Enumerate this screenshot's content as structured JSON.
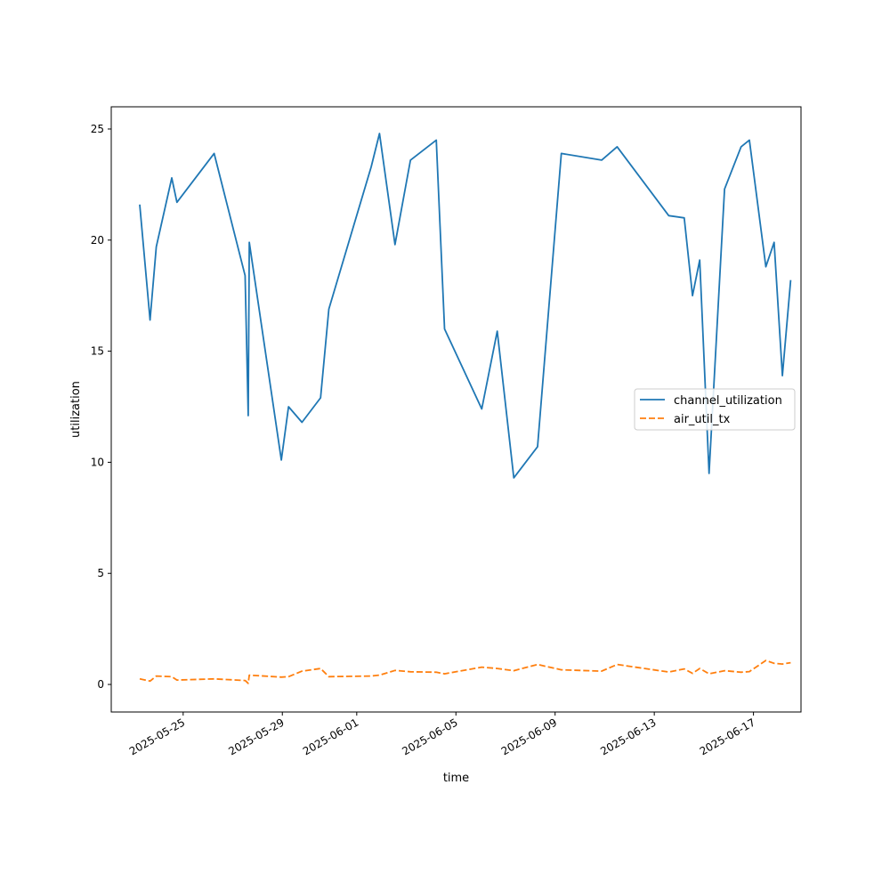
{
  "chart_data": {
    "type": "line",
    "title": "",
    "xlabel": "time",
    "ylabel": "utilization",
    "xlim": [
      "2025-05-22 02:24",
      "2025-06-18 22:00"
    ],
    "ylim": [
      -1.24,
      26.0
    ],
    "x_ticks": [
      "2025-05-25",
      "2025-05-29",
      "2025-06-01",
      "2025-06-05",
      "2025-06-09",
      "2025-06-13",
      "2025-06-17"
    ],
    "y_ticks": [
      0,
      5,
      10,
      15,
      20,
      25
    ],
    "grid": false,
    "legend_position": "right",
    "series": [
      {
        "name": "channel_utilization",
        "color": "#1f77b4",
        "dash": "solid",
        "points": [
          [
            "2025-05-23 06:00",
            21.6
          ],
          [
            "2025-05-23 16:00",
            16.4
          ],
          [
            "2025-05-23 22:00",
            19.7
          ],
          [
            "2025-05-24 13:00",
            22.8
          ],
          [
            "2025-05-24 18:00",
            21.7
          ],
          [
            "2025-05-26 06:00",
            23.9
          ],
          [
            "2025-05-27 12:00",
            18.4
          ],
          [
            "2025-05-27 15:00",
            12.1
          ],
          [
            "2025-05-27 16:00",
            19.9
          ],
          [
            "2025-05-28 23:00",
            10.1
          ],
          [
            "2025-05-29 06:00",
            12.5
          ],
          [
            "2025-05-29 19:00",
            11.8
          ],
          [
            "2025-05-30 13:00",
            12.9
          ],
          [
            "2025-05-30 21:00",
            16.9
          ],
          [
            "2025-06-01 14:00",
            23.3
          ],
          [
            "2025-06-01 22:00",
            24.8
          ],
          [
            "2025-06-02 13:00",
            19.8
          ],
          [
            "2025-06-03 04:00",
            23.6
          ],
          [
            "2025-06-04 05:00",
            24.5
          ],
          [
            "2025-06-04 13:00",
            16.0
          ],
          [
            "2025-06-06 01:00",
            12.4
          ],
          [
            "2025-06-06 16:00",
            15.9
          ],
          [
            "2025-06-07 08:00",
            9.3
          ],
          [
            "2025-06-08 07:00",
            10.7
          ],
          [
            "2025-06-09 06:00",
            23.9
          ],
          [
            "2025-06-10 21:00",
            23.6
          ],
          [
            "2025-06-11 12:00",
            24.2
          ],
          [
            "2025-06-13 14:00",
            21.1
          ],
          [
            "2025-06-14 05:00",
            21.0
          ],
          [
            "2025-06-14 13:00",
            17.5
          ],
          [
            "2025-06-14 20:00",
            19.1
          ],
          [
            "2025-06-15 05:00",
            9.5
          ],
          [
            "2025-06-15 20:00",
            22.3
          ],
          [
            "2025-06-16 12:00",
            24.2
          ],
          [
            "2025-06-16 20:00",
            24.5
          ],
          [
            "2025-06-17 12:00",
            18.8
          ],
          [
            "2025-06-17 20:00",
            19.9
          ],
          [
            "2025-06-18 04:00",
            13.9
          ],
          [
            "2025-06-18 12:00",
            18.2
          ]
        ]
      },
      {
        "name": "air_util_tx",
        "color": "#ff7f0e",
        "dash": "dashed",
        "points": [
          [
            "2025-05-23 06:00",
            0.25
          ],
          [
            "2025-05-23 16:00",
            0.15
          ],
          [
            "2025-05-23 22:00",
            0.38
          ],
          [
            "2025-05-24 13:00",
            0.35
          ],
          [
            "2025-05-24 18:00",
            0.2
          ],
          [
            "2025-05-26 06:00",
            0.25
          ],
          [
            "2025-05-27 12:00",
            0.18
          ],
          [
            "2025-05-27 15:00",
            0.05
          ],
          [
            "2025-05-27 16:00",
            0.42
          ],
          [
            "2025-05-28 23:00",
            0.33
          ],
          [
            "2025-05-29 06:00",
            0.35
          ],
          [
            "2025-05-29 19:00",
            0.6
          ],
          [
            "2025-05-30 13:00",
            0.72
          ],
          [
            "2025-05-30 21:00",
            0.35
          ],
          [
            "2025-06-01 14:00",
            0.38
          ],
          [
            "2025-06-01 22:00",
            0.42
          ],
          [
            "2025-06-02 13:00",
            0.63
          ],
          [
            "2025-06-03 04:00",
            0.57
          ],
          [
            "2025-06-04 05:00",
            0.55
          ],
          [
            "2025-06-04 13:00",
            0.48
          ],
          [
            "2025-06-06 01:00",
            0.78
          ],
          [
            "2025-06-06 16:00",
            0.72
          ],
          [
            "2025-06-07 08:00",
            0.62
          ],
          [
            "2025-06-08 07:00",
            0.9
          ],
          [
            "2025-06-09 06:00",
            0.66
          ],
          [
            "2025-06-10 21:00",
            0.6
          ],
          [
            "2025-06-11 12:00",
            0.9
          ],
          [
            "2025-06-13 14:00",
            0.56
          ],
          [
            "2025-06-14 05:00",
            0.7
          ],
          [
            "2025-06-14 13:00",
            0.5
          ],
          [
            "2025-06-14 20:00",
            0.72
          ],
          [
            "2025-06-15 05:00",
            0.48
          ],
          [
            "2025-06-15 20:00",
            0.62
          ],
          [
            "2025-06-16 12:00",
            0.55
          ],
          [
            "2025-06-16 20:00",
            0.58
          ],
          [
            "2025-06-17 12:00",
            1.08
          ],
          [
            "2025-06-17 20:00",
            0.95
          ],
          [
            "2025-06-18 04:00",
            0.92
          ],
          [
            "2025-06-18 12:00",
            0.98
          ]
        ]
      }
    ]
  }
}
